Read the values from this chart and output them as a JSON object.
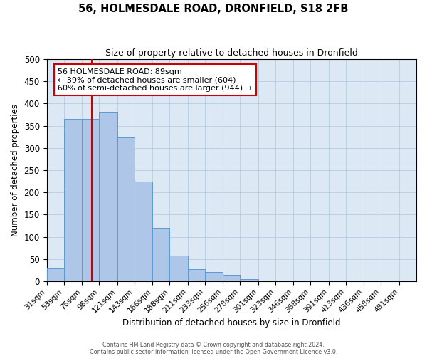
{
  "title": "56, HOLMESDALE ROAD, DRONFIELD, S18 2FB",
  "subtitle": "Size of property relative to detached houses in Dronfield",
  "xlabel": "Distribution of detached houses by size in Dronfield",
  "ylabel": "Number of detached properties",
  "bin_labels": [
    "31sqm",
    "53sqm",
    "76sqm",
    "98sqm",
    "121sqm",
    "143sqm",
    "166sqm",
    "188sqm",
    "211sqm",
    "233sqm",
    "256sqm",
    "278sqm",
    "301sqm",
    "323sqm",
    "346sqm",
    "368sqm",
    "391sqm",
    "413sqm",
    "436sqm",
    "458sqm",
    "481sqm"
  ],
  "bin_edges": [
    31,
    53,
    76,
    98,
    121,
    143,
    166,
    188,
    211,
    233,
    256,
    278,
    301,
    323,
    346,
    368,
    391,
    413,
    436,
    458,
    481,
    503
  ],
  "bar_heights": [
    28,
    365,
    365,
    380,
    323,
    225,
    120,
    58,
    27,
    20,
    15,
    5,
    2,
    1,
    0,
    0,
    0,
    0,
    0,
    0,
    2
  ],
  "bar_color": "#aec6e8",
  "bar_edge_color": "#5b9bd5",
  "background_color": "#dce9f5",
  "grid_color": "#b0c4de",
  "property_size": 89,
  "vline_color": "#cc0000",
  "annotation_line1": "56 HOLMESDALE ROAD: 89sqm",
  "annotation_line2": "← 39% of detached houses are smaller (604)",
  "annotation_line3": "60% of semi-detached houses are larger (944) →",
  "annotation_box_color": "#ffffff",
  "annotation_box_edge_color": "#cc0000",
  "ylim": [
    0,
    500
  ],
  "yticks": [
    0,
    50,
    100,
    150,
    200,
    250,
    300,
    350,
    400,
    450,
    500
  ],
  "footer_line1": "Contains HM Land Registry data © Crown copyright and database right 2024.",
  "footer_line2": "Contains public sector information licensed under the Open Government Licence v3.0."
}
